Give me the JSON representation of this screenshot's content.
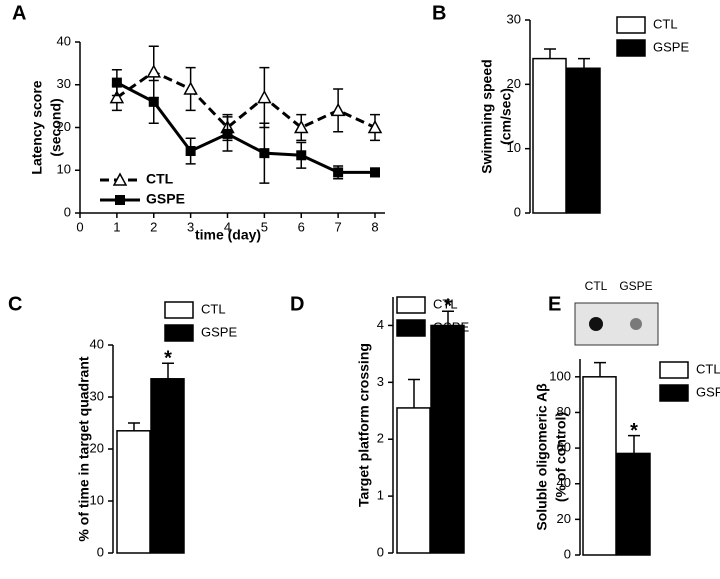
{
  "chart_data": [
    {
      "type": "line",
      "panel": "A",
      "ylabel": [
        "Latency score",
        "(second)"
      ],
      "xlabel": "time (day)",
      "x": [
        1,
        2,
        3,
        4,
        5,
        6,
        7,
        8
      ],
      "xlim": [
        0,
        8
      ],
      "xticks": [
        0,
        1,
        2,
        3,
        4,
        5,
        6,
        7,
        8
      ],
      "ylim": [
        0,
        40
      ],
      "yticks": [
        0,
        10,
        20,
        30,
        40
      ],
      "series": [
        {
          "name": "CTL",
          "color": "#000000",
          "marker": "triangle",
          "line_style": "dashed",
          "values": [
            27,
            33,
            29,
            20,
            27,
            20,
            24,
            20
          ],
          "errors": [
            3,
            6,
            5,
            3,
            7,
            3,
            5,
            3
          ]
        },
        {
          "name": "GSPE",
          "color": "#000000",
          "marker": "square",
          "line_style": "solid",
          "values": [
            30.5,
            26,
            14.5,
            18.5,
            14,
            13.5,
            9.5,
            9.5
          ],
          "errors": [
            3,
            5,
            3,
            4,
            7,
            3,
            1.5,
            1
          ]
        }
      ]
    },
    {
      "type": "bar",
      "panel": "B",
      "ylabel": [
        "Swimming speed",
        "(cm/sec)"
      ],
      "ylim": [
        0,
        30
      ],
      "yticks": [
        0,
        10,
        20,
        30
      ],
      "series": [
        {
          "name": "CTL",
          "color": "#ffffff",
          "values": [
            24
          ],
          "errors": [
            1.5
          ]
        },
        {
          "name": "GSPE",
          "color": "#000000",
          "values": [
            22.5
          ],
          "errors": [
            1.5
          ]
        }
      ]
    },
    {
      "type": "bar",
      "panel": "C",
      "ylabel": [
        "% of time in target quadrant"
      ],
      "annotation": "*",
      "ylim": [
        0,
        40
      ],
      "yticks": [
        0,
        10,
        20,
        30,
        40
      ],
      "series": [
        {
          "name": "CTL",
          "color": "#ffffff",
          "values": [
            23.5
          ],
          "errors": [
            1.5
          ]
        },
        {
          "name": "GSPE",
          "color": "#000000",
          "values": [
            33.5
          ],
          "errors": [
            3
          ]
        }
      ]
    },
    {
      "type": "bar",
      "panel": "D",
      "ylabel": [
        "Target platform crossing"
      ],
      "annotation": "*",
      "ylim": [
        0,
        4.5
      ],
      "yticks": [
        0,
        1,
        2,
        3,
        4
      ],
      "series": [
        {
          "name": "CTL",
          "color": "#ffffff",
          "values": [
            2.55
          ],
          "errors": [
            0.5
          ]
        },
        {
          "name": "GSPE",
          "color": "#000000",
          "values": [
            4.0
          ],
          "errors": [
            0.25
          ]
        }
      ]
    },
    {
      "type": "bar",
      "panel": "E",
      "ylabel": [
        "Soluble oligomeric Aβ",
        "(% of control)"
      ],
      "annotation": "*",
      "blot_labels": [
        "CTL",
        "GSPE"
      ],
      "ylim": [
        0,
        110
      ],
      "yticks": [
        0,
        20,
        40,
        60,
        80,
        100
      ],
      "series": [
        {
          "name": "CTL",
          "color": "#ffffff",
          "values": [
            100
          ],
          "errors": [
            8
          ]
        },
        {
          "name": "GSPE",
          "color": "#000000",
          "values": [
            57
          ],
          "errors": [
            10
          ]
        }
      ]
    }
  ]
}
